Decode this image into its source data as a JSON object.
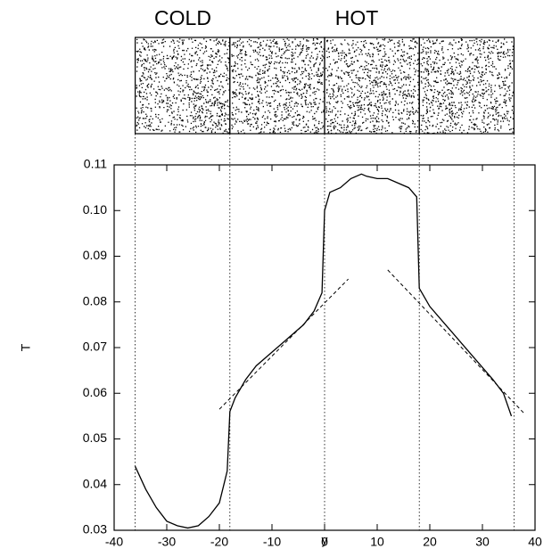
{
  "chart_data": {
    "type": "line",
    "annotations": [
      "COLD",
      "HOT"
    ],
    "xlabel": "y",
    "ylabel": "T",
    "xlim": [
      -40,
      40
    ],
    "ylim": [
      0.03,
      0.11
    ],
    "xticks": [
      -40,
      -30,
      -20,
      -10,
      0,
      10,
      20,
      30,
      40
    ],
    "yticks": [
      0.03,
      0.04,
      0.05,
      0.06,
      0.07,
      0.08,
      0.09,
      {
        "value": 0.1,
        "label": "0.10"
      },
      0.11
    ],
    "vlines": [
      -36,
      -18,
      0,
      18,
      36
    ],
    "series": [
      {
        "style": "solid",
        "color": "#000000",
        "x": [
          -36,
          -34,
          -32,
          -30,
          -28,
          -26,
          -24,
          -22,
          -20,
          -18.5,
          -18,
          -17,
          -15,
          -13,
          -10,
          -7,
          -4,
          -2,
          -0.5,
          0,
          1,
          3,
          5,
          7,
          8,
          10,
          12,
          14,
          16,
          17.5,
          18,
          20,
          23,
          26,
          29,
          32,
          34,
          35.5
        ],
        "values": [
          0.044,
          0.039,
          0.035,
          0.032,
          0.031,
          0.0305,
          0.031,
          0.033,
          0.036,
          0.043,
          0.056,
          0.059,
          0.063,
          0.066,
          0.069,
          0.072,
          0.075,
          0.078,
          0.082,
          0.1,
          0.104,
          0.105,
          0.107,
          0.108,
          0.1075,
          0.107,
          0.107,
          0.106,
          0.105,
          0.103,
          0.083,
          0.079,
          0.075,
          0.071,
          0.067,
          0.063,
          0.06,
          0.055
        ]
      },
      {
        "style": "dashed",
        "color": "#000000",
        "x": [
          -20,
          4.5
        ],
        "values": [
          0.0565,
          0.085
        ]
      },
      {
        "style": "dashed",
        "color": "#000000",
        "x": [
          12,
          38
        ],
        "values": [
          0.087,
          0.0555
        ]
      }
    ]
  }
}
